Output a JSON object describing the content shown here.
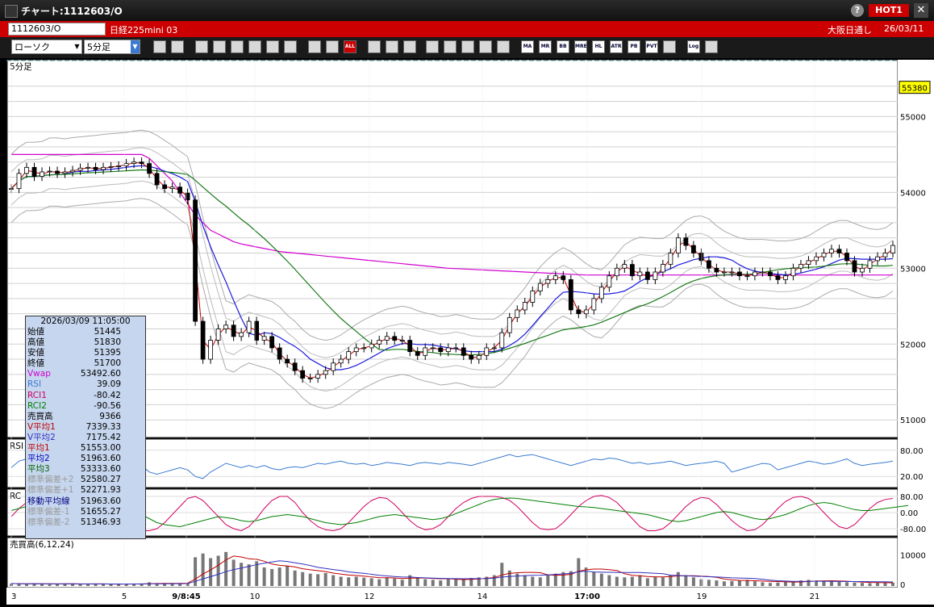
{
  "window": {
    "title": "チャート:1112603/O",
    "help": "?",
    "hot_label": "HOT1",
    "close": "✕"
  },
  "info": {
    "code": "1112603/O",
    "name": "日経225mini 03",
    "session": "大阪日通し",
    "date": "26/03/11"
  },
  "toolbar": {
    "chart_type": "ローソク",
    "interval": "5分足",
    "buttons": [
      "search-icon",
      "crosshair-icon",
      "pencil-icon",
      "trendline-icon",
      "cursor-icon",
      "arrow-icon",
      "note-icon",
      "trash-icon",
      "candle-icon",
      "candle-edit-icon",
      "all-icon",
      "settings-icon",
      "wrench-icon",
      "palette-icon",
      "export-icon",
      "zoom-icon",
      "period-icon",
      "plus-icon",
      "blank-icon",
      "ma-icon",
      "mr-icon",
      "bb-icon",
      "mre-icon",
      "hl-icon",
      "atr-icon",
      "pb-icon",
      "pvt-icon",
      "box-icon",
      "log-icon",
      "exit-icon"
    ],
    "labels": {
      "all": "ALL",
      "ma": "MA",
      "mr": "MR",
      "bb": "BB",
      "mre": "MRE",
      "hl": "HL",
      "atr": "ATR",
      "pb": "PB",
      "pvt": "PVT",
      "log": "Log"
    }
  },
  "price_panel": {
    "label": "5分足",
    "current_price": "55380",
    "y_labels": [
      "55000",
      "54000",
      "53000",
      "52000",
      "51000"
    ]
  },
  "rsi_panel": {
    "label": "RSI",
    "y_labels": [
      "80.00",
      "20.00"
    ]
  },
  "rci_panel": {
    "label": "RC",
    "y_labels": [
      "80.00",
      "0.00",
      "-80.00"
    ]
  },
  "volume_panel": {
    "label": "売買高(6,12,24)",
    "y_labels": [
      "10000",
      "0"
    ]
  },
  "x_axis": {
    "labels": [
      "3",
      "5",
      "9/8:45",
      "10",
      "12",
      "14",
      "17:00",
      "19",
      "21"
    ]
  },
  "data_panel": {
    "timestamp": "2026/03/09 11:05:00",
    "rows": [
      {
        "label": "始値",
        "value": "51445",
        "color": "#000000"
      },
      {
        "label": "高値",
        "value": "51830",
        "color": "#000000"
      },
      {
        "label": "安値",
        "value": "51395",
        "color": "#000000"
      },
      {
        "label": "終値",
        "value": "51700",
        "color": "#000000"
      },
      {
        "label": "Vwap",
        "value": "53492.60",
        "color": "#d000d0"
      },
      {
        "label": "RSI",
        "value": "39.09",
        "color": "#3a7ad0"
      },
      {
        "label": "RCI1",
        "value": "-80.42",
        "color": "#d00060"
      },
      {
        "label": "RCI2",
        "value": "-90.56",
        "color": "#008000"
      },
      {
        "label": "売買高",
        "value": "9366",
        "color": "#000000"
      },
      {
        "label": "V平均1",
        "value": "7339.33",
        "color": "#c00000"
      },
      {
        "label": "V平均2",
        "value": "7175.42",
        "color": "#3030c0"
      },
      {
        "label": "平均1",
        "value": "51553.00",
        "color": "#c00000"
      },
      {
        "label": "平均2",
        "value": "51963.60",
        "color": "#0000c0"
      },
      {
        "label": "平均3",
        "value": "53333.60",
        "color": "#006000"
      },
      {
        "label": "標準偏差+2",
        "value": "52580.27",
        "color": "#9a9a9a"
      },
      {
        "label": "標準偏差+1",
        "value": "52271.93",
        "color": "#9a9a9a"
      },
      {
        "label": "移動平均線",
        "value": "51963.60",
        "color": "#000080"
      },
      {
        "label": "標準偏差-1",
        "value": "51655.27",
        "color": "#9a9a9a"
      },
      {
        "label": "標準偏差-2",
        "value": "51346.93",
        "color": "#9a9a9a"
      }
    ]
  },
  "chart_data": {
    "type": "candlestick",
    "ylim": [
      50800,
      55600
    ],
    "price": [
      54050,
      54250,
      54330,
      54210,
      54270,
      54280,
      54250,
      54270,
      54290,
      54320,
      54330,
      54300,
      54330,
      54340,
      54350,
      54380,
      54400,
      54380,
      54250,
      54100,
      54050,
      54070,
      53990,
      53900,
      52300,
      51800,
      52050,
      52200,
      52250,
      52100,
      52150,
      52300,
      52050,
      52100,
      51950,
      51800,
      51750,
      51650,
      51550,
      51550,
      51600,
      51650,
      51750,
      51800,
      51900,
      51950,
      51950,
      52000,
      52050,
      52100,
      52050,
      52050,
      51900,
      51850,
      51950,
      51950,
      51900,
      51950,
      51950,
      51850,
      51800,
      51850,
      51950,
      51950,
      52150,
      52350,
      52450,
      52550,
      52700,
      52800,
      52850,
      52900,
      52850,
      52450,
      52400,
      52450,
      52600,
      52750,
      52900,
      53000,
      53050,
      52900,
      52950,
      52850,
      52950,
      53050,
      53200,
      53400,
      53300,
      53200,
      53100,
      53000,
      52950,
      52950,
      52950,
      52900,
      52900,
      52950,
      52950,
      52900,
      52850,
      52900,
      53000,
      53050,
      53100,
      53150,
      53200,
      53250,
      53200,
      53100,
      52950,
      53000,
      53100,
      53150,
      53200,
      53300
    ],
    "vwap": [
      54500,
      54500,
      54500,
      54500,
      54500,
      54500,
      54500,
      54500,
      54500,
      54500,
      54500,
      54500,
      54500,
      54500,
      54500,
      54500,
      54500,
      54500,
      54450,
      54350,
      54250,
      54150,
      54000,
      53850,
      53700,
      53600,
      53500,
      53450,
      53400,
      53350,
      53320,
      53300,
      53280,
      53260,
      53240,
      53220,
      53210,
      53200,
      53190,
      53180,
      53170,
      53160,
      53150,
      53140,
      53130,
      53120,
      53110,
      53100,
      53090,
      53080,
      53070,
      53060,
      53050,
      53040,
      53030,
      53020,
      53010,
      53000,
      52995,
      52990,
      52985,
      52980,
      52975,
      52970,
      52965,
      52960,
      52955,
      52950,
      52945,
      52940,
      52935,
      52930,
      52925,
      52920,
      52915,
      52910,
      52910,
      52910,
      52910,
      52910,
      52910,
      52910,
      52910,
      52910,
      52910,
      52910,
      52910,
      52910,
      52910,
      52910,
      52910,
      52910,
      52910,
      52910,
      52910,
      52910,
      52910,
      52910,
      52910,
      52910,
      52910,
      52910,
      52910,
      52910,
      52910,
      52910,
      52910,
      52910,
      52910,
      52910,
      52910,
      52910,
      52910,
      52910,
      52910,
      52910
    ],
    "rsi": [
      40,
      55,
      60,
      50,
      45,
      50,
      55,
      50,
      48,
      52,
      50,
      45,
      50,
      55,
      50,
      48,
      50,
      45,
      30,
      25,
      30,
      35,
      40,
      35,
      20,
      15,
      30,
      40,
      50,
      45,
      40,
      45,
      40,
      45,
      38,
      35,
      40,
      42,
      40,
      45,
      50,
      48,
      52,
      55,
      50,
      48,
      50,
      45,
      48,
      52,
      50,
      48,
      45,
      50,
      52,
      50,
      48,
      52,
      50,
      48,
      45,
      50,
      55,
      60,
      65,
      70,
      65,
      68,
      70,
      65,
      60,
      55,
      50,
      45,
      50,
      55,
      60,
      58,
      62,
      60,
      55,
      50,
      52,
      48,
      50,
      52,
      55,
      50,
      45,
      48,
      50,
      52,
      55,
      50,
      30,
      35,
      40,
      45,
      50,
      48,
      35,
      40,
      45,
      50,
      55,
      52,
      48,
      50,
      55,
      60,
      50,
      45,
      48,
      50,
      52,
      55
    ],
    "rci1": [
      -20,
      20,
      50,
      60,
      40,
      0,
      -40,
      -70,
      -60,
      -20,
      30,
      60,
      70,
      50,
      10,
      -40,
      -80,
      -90,
      -90,
      -80,
      -50,
      -10,
      30,
      70,
      80,
      60,
      20,
      -20,
      -60,
      -80,
      -90,
      -70,
      -30,
      20,
      60,
      80,
      80,
      50,
      0,
      -40,
      -70,
      -85,
      -90,
      -80,
      -50,
      -10,
      30,
      60,
      75,
      70,
      40,
      0,
      -40,
      -70,
      -85,
      -80,
      -60,
      -20,
      20,
      50,
      70,
      80,
      80,
      80,
      75,
      60,
      30,
      -10,
      -50,
      -80,
      -85,
      -80,
      -50,
      -10,
      30,
      60,
      80,
      85,
      75,
      50,
      10,
      -30,
      -70,
      -90,
      -90,
      -80,
      -50,
      -10,
      30,
      60,
      75,
      70,
      40,
      0,
      -40,
      -70,
      -90,
      -85,
      -60,
      -20,
      20,
      55,
      75,
      80,
      70,
      40,
      0,
      -40,
      -70,
      -80,
      -60,
      -20,
      20,
      50,
      65,
      70
    ],
    "rci2": [
      10,
      20,
      30,
      30,
      25,
      20,
      10,
      0,
      -10,
      -10,
      -5,
      0,
      10,
      20,
      25,
      20,
      10,
      -10,
      -30,
      -50,
      -60,
      -65,
      -70,
      -60,
      -50,
      -40,
      -30,
      -20,
      -25,
      -30,
      -40,
      -45,
      -40,
      -30,
      -20,
      -15,
      -10,
      -15,
      -20,
      -30,
      -40,
      -50,
      -55,
      -60,
      -55,
      -50,
      -40,
      -30,
      -20,
      -15,
      -10,
      -15,
      -20,
      -25,
      -30,
      -35,
      -30,
      -20,
      -5,
      10,
      25,
      40,
      55,
      65,
      70,
      72,
      70,
      65,
      60,
      55,
      50,
      45,
      40,
      35,
      30,
      28,
      25,
      20,
      15,
      10,
      5,
      0,
      -5,
      -10,
      -20,
      -30,
      -40,
      -45,
      -40,
      -30,
      -20,
      -10,
      0,
      5,
      0,
      -10,
      -20,
      -30,
      -35,
      -30,
      -20,
      -10,
      5,
      20,
      35,
      45,
      50,
      45,
      35,
      25,
      15,
      10,
      10,
      15,
      20,
      25,
      30,
      35
    ],
    "volume": [
      800,
      700,
      600,
      900,
      700,
      500,
      600,
      800,
      700,
      600,
      650,
      700,
      600,
      550,
      600,
      700,
      800,
      700,
      1200,
      900,
      900,
      700,
      800,
      900,
      9300,
      10500,
      9000,
      9800,
      11000,
      8500,
      7500,
      7000,
      8000,
      6000,
      5500,
      6000,
      6500,
      5000,
      4500,
      4000,
      3800,
      4200,
      3500,
      3000,
      2800,
      3000,
      2700,
      2500,
      2200,
      2800,
      2400,
      2000,
      3500,
      2600,
      2200,
      2000,
      1800,
      2200,
      2400,
      2000,
      2600,
      2800,
      3000,
      3500,
      7500,
      5000,
      4000,
      3500,
      3000,
      2800,
      3500,
      4000,
      4500,
      4800,
      9000,
      6000,
      4500,
      4000,
      3500,
      3000,
      2800,
      3000,
      3500,
      2500,
      3000,
      2800,
      3500,
      4500,
      3500,
      2800,
      2200,
      2000,
      1800,
      1500,
      1600,
      1800,
      2000,
      1500,
      1200,
      1000,
      1100,
      1300,
      1500,
      1800,
      2000,
      1800,
      1600,
      1400,
      1300,
      1200,
      1100,
      1000,
      900,
      1000,
      1200,
      1100
    ]
  }
}
